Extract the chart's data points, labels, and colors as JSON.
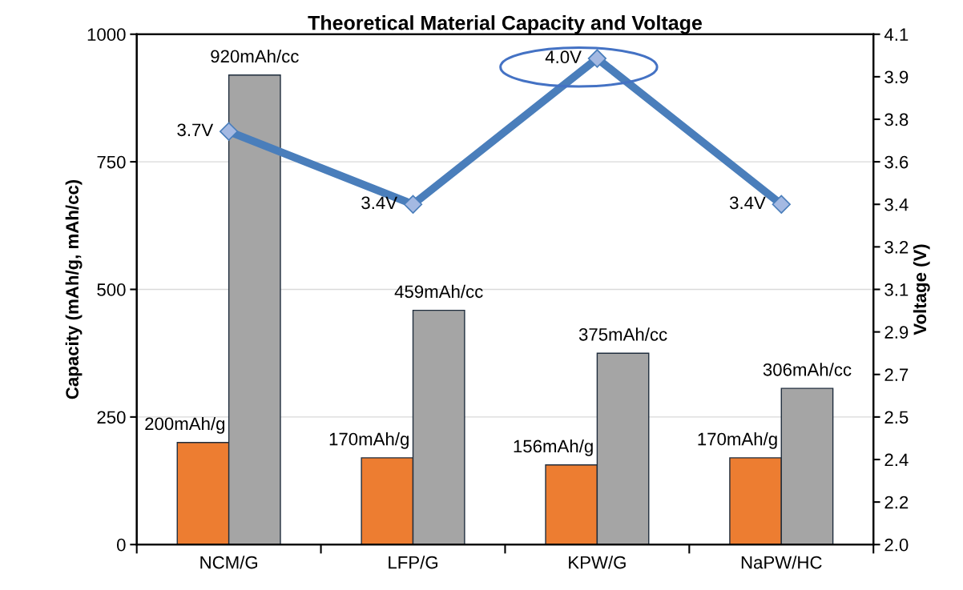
{
  "chart_data": {
    "type": "bar",
    "title": "Theoretical Material Capacity and Voltage",
    "ylabel": "Capacity (mAh/g, mAh/cc)",
    "y2label": "Voltage (V)",
    "categories": [
      "NCM/G",
      "LFP/G",
      "KPW/G",
      "NaPW/HC"
    ],
    "series": [
      {
        "color": "#ed7d31",
        "values": [
          200,
          170,
          156,
          170
        ],
        "value_labels": [
          "200mAh/g",
          "170mAh/g",
          "156mAh/g",
          "170mAh/g"
        ]
      },
      {
        "color": "#a5a5a5",
        "values": [
          920,
          459,
          375,
          306
        ],
        "value_labels": [
          "920mAh/cc",
          "459mAh/cc",
          "375mAh/cc",
          "306mAh/cc"
        ]
      },
      {
        "type": "line",
        "axis": "y2",
        "color": "#4a7ebb",
        "marker": "diamond",
        "values": [
          3.7,
          3.4,
          4.0,
          3.4
        ],
        "value_labels": [
          "3.7V",
          "3.4V",
          "4.0V",
          "3.4V"
        ]
      }
    ],
    "ylim": [
      0,
      1000
    ],
    "yticks": [
      0,
      250,
      500,
      750,
      1000
    ],
    "y2lim": [
      2.0,
      4.1
    ],
    "y2ticks": [
      {
        "value": 2.0,
        "label": "2.0"
      },
      {
        "value": 2.175,
        "label": "2.2"
      },
      {
        "value": 2.35,
        "label": "2.4"
      },
      {
        "value": 2.525,
        "label": "2.5"
      },
      {
        "value": 2.7,
        "label": "2.7"
      },
      {
        "value": 2.875,
        "label": "2.9"
      },
      {
        "value": 3.05,
        "label": "3.1"
      },
      {
        "value": 3.225,
        "label": "3.2"
      },
      {
        "value": 3.4,
        "label": "3.4"
      },
      {
        "value": 3.575,
        "label": "3.6"
      },
      {
        "value": 3.75,
        "label": "3.8"
      },
      {
        "value": 3.925,
        "label": "3.9"
      },
      {
        "value": 4.1,
        "label": "4.1"
      }
    ],
    "grid": "y",
    "legend": false
  }
}
